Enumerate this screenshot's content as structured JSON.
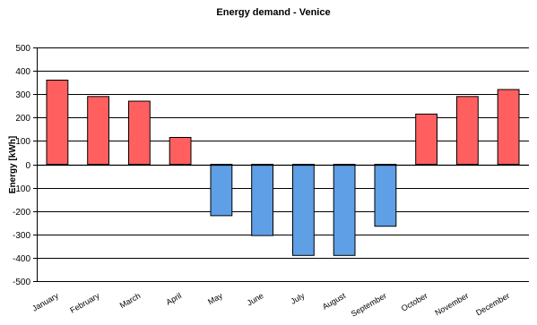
{
  "chart_data": {
    "type": "bar",
    "title": "Energy demand - Venice",
    "xlabel": "",
    "ylabel": "Energy [kWh]",
    "ylim": [
      -500,
      500
    ],
    "yticks": [
      500,
      400,
      300,
      200,
      100,
      0,
      -100,
      -200,
      -300,
      -400,
      -500
    ],
    "grid": true,
    "legend": "none",
    "categories": [
      "January",
      "February",
      "March",
      "April",
      "May",
      "June",
      "July",
      "August",
      "September",
      "October",
      "November",
      "December"
    ],
    "values": [
      360,
      290,
      270,
      115,
      -220,
      -305,
      -390,
      -390,
      -265,
      215,
      290,
      320
    ],
    "colors": {
      "positive": "#ff5f5f",
      "negative": "#5f9fe6",
      "axis": "#000000",
      "grid": "#000000"
    }
  }
}
